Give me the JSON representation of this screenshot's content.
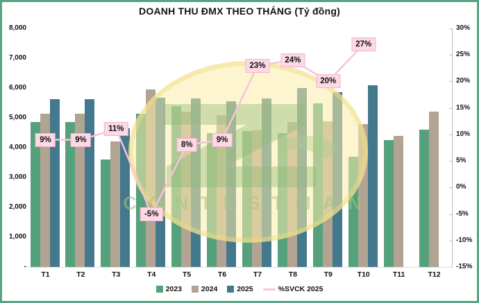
{
  "title": "DOANH THU ĐMX THEO THÁNG (Tỷ đồng)",
  "watermark": {
    "text": "CONTESTMAN"
  },
  "colors": {
    "frame": "#56a47f",
    "bar_2023": "#55a17c",
    "bar_2024": "#b1a493",
    "bar_2025": "#44788c",
    "line": "#f7c5d5",
    "label_bg": "#fcd9e4"
  },
  "chart_data": {
    "type": "bar",
    "title": "DOANH THU ĐMX THEO THÁNG (Tỷ đồng)",
    "categories": [
      "T1",
      "T2",
      "T3",
      "T4",
      "T5",
      "T6",
      "T7",
      "T8",
      "T9",
      "T10",
      "T11",
      "T12"
    ],
    "series": [
      {
        "name": "2023",
        "color": "#55a17c",
        "values": [
          4850,
          4850,
          3600,
          5150,
          5400,
          4500,
          4550,
          4500,
          5500,
          3700,
          4250,
          4600
        ]
      },
      {
        "name": "2024",
        "color": "#b1a493",
        "values": [
          5150,
          5150,
          4200,
          5950,
          5200,
          5100,
          4590,
          4850,
          4880,
          4790,
          4400,
          5200
        ]
      },
      {
        "name": "2025",
        "color": "#44788c",
        "values": [
          5620,
          5630,
          4650,
          5670,
          5640,
          5560,
          5650,
          6010,
          5850,
          6090,
          null,
          null
        ]
      }
    ],
    "line_series": {
      "name": "%SVCK 2025",
      "color": "#f7c5d5",
      "values": [
        9,
        9,
        11,
        -5,
        8,
        9,
        23,
        24,
        20,
        27,
        null,
        null
      ],
      "labels": [
        "9%",
        "9%",
        "11%",
        "-5%",
        "8%",
        "9%",
        "23%",
        "24%",
        "20%",
        "27%"
      ]
    },
    "left_axis": {
      "min": 0,
      "max": 8000,
      "ticks": [
        "8,000",
        "7,000",
        "6,000",
        "5,000",
        "4,000",
        "3,000",
        "2,000",
        "1,000",
        "-"
      ]
    },
    "right_axis": {
      "min": -15,
      "max": 30,
      "ticks": [
        "30%",
        "25%",
        "20%",
        "15%",
        "10%",
        "5%",
        "0%",
        "-5%",
        "-10%",
        "-15%"
      ]
    },
    "legend": [
      "2023",
      "2024",
      "2025",
      "%SVCK 2025"
    ],
    "legend_position": "bottom",
    "grid": false
  }
}
